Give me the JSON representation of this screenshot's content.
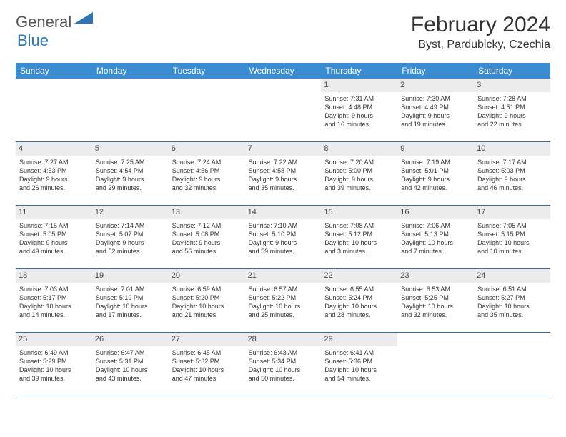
{
  "logo": {
    "part1": "General",
    "part2": "Blue"
  },
  "title": "February 2024",
  "location": "Byst, Pardubicky, Czechia",
  "colors": {
    "weekday_bg": "#3b8bd0",
    "weekday_text": "#ffffff",
    "daynum_bg": "#ececec",
    "border": "#2f6fa8",
    "logo_gray": "#555555",
    "logo_blue": "#2f75b5"
  },
  "weekdays": [
    "Sunday",
    "Monday",
    "Tuesday",
    "Wednesday",
    "Thursday",
    "Friday",
    "Saturday"
  ],
  "weeks": [
    [
      null,
      null,
      null,
      null,
      {
        "n": "1",
        "sr": "Sunrise: 7:31 AM",
        "ss": "Sunset: 4:48 PM",
        "dl1": "Daylight: 9 hours",
        "dl2": "and 16 minutes."
      },
      {
        "n": "2",
        "sr": "Sunrise: 7:30 AM",
        "ss": "Sunset: 4:49 PM",
        "dl1": "Daylight: 9 hours",
        "dl2": "and 19 minutes."
      },
      {
        "n": "3",
        "sr": "Sunrise: 7:28 AM",
        "ss": "Sunset: 4:51 PM",
        "dl1": "Daylight: 9 hours",
        "dl2": "and 22 minutes."
      }
    ],
    [
      {
        "n": "4",
        "sr": "Sunrise: 7:27 AM",
        "ss": "Sunset: 4:53 PM",
        "dl1": "Daylight: 9 hours",
        "dl2": "and 26 minutes."
      },
      {
        "n": "5",
        "sr": "Sunrise: 7:25 AM",
        "ss": "Sunset: 4:54 PM",
        "dl1": "Daylight: 9 hours",
        "dl2": "and 29 minutes."
      },
      {
        "n": "6",
        "sr": "Sunrise: 7:24 AM",
        "ss": "Sunset: 4:56 PM",
        "dl1": "Daylight: 9 hours",
        "dl2": "and 32 minutes."
      },
      {
        "n": "7",
        "sr": "Sunrise: 7:22 AM",
        "ss": "Sunset: 4:58 PM",
        "dl1": "Daylight: 9 hours",
        "dl2": "and 35 minutes."
      },
      {
        "n": "8",
        "sr": "Sunrise: 7:20 AM",
        "ss": "Sunset: 5:00 PM",
        "dl1": "Daylight: 9 hours",
        "dl2": "and 39 minutes."
      },
      {
        "n": "9",
        "sr": "Sunrise: 7:19 AM",
        "ss": "Sunset: 5:01 PM",
        "dl1": "Daylight: 9 hours",
        "dl2": "and 42 minutes."
      },
      {
        "n": "10",
        "sr": "Sunrise: 7:17 AM",
        "ss": "Sunset: 5:03 PM",
        "dl1": "Daylight: 9 hours",
        "dl2": "and 46 minutes."
      }
    ],
    [
      {
        "n": "11",
        "sr": "Sunrise: 7:15 AM",
        "ss": "Sunset: 5:05 PM",
        "dl1": "Daylight: 9 hours",
        "dl2": "and 49 minutes."
      },
      {
        "n": "12",
        "sr": "Sunrise: 7:14 AM",
        "ss": "Sunset: 5:07 PM",
        "dl1": "Daylight: 9 hours",
        "dl2": "and 52 minutes."
      },
      {
        "n": "13",
        "sr": "Sunrise: 7:12 AM",
        "ss": "Sunset: 5:08 PM",
        "dl1": "Daylight: 9 hours",
        "dl2": "and 56 minutes."
      },
      {
        "n": "14",
        "sr": "Sunrise: 7:10 AM",
        "ss": "Sunset: 5:10 PM",
        "dl1": "Daylight: 9 hours",
        "dl2": "and 59 minutes."
      },
      {
        "n": "15",
        "sr": "Sunrise: 7:08 AM",
        "ss": "Sunset: 5:12 PM",
        "dl1": "Daylight: 10 hours",
        "dl2": "and 3 minutes."
      },
      {
        "n": "16",
        "sr": "Sunrise: 7:06 AM",
        "ss": "Sunset: 5:13 PM",
        "dl1": "Daylight: 10 hours",
        "dl2": "and 7 minutes."
      },
      {
        "n": "17",
        "sr": "Sunrise: 7:05 AM",
        "ss": "Sunset: 5:15 PM",
        "dl1": "Daylight: 10 hours",
        "dl2": "and 10 minutes."
      }
    ],
    [
      {
        "n": "18",
        "sr": "Sunrise: 7:03 AM",
        "ss": "Sunset: 5:17 PM",
        "dl1": "Daylight: 10 hours",
        "dl2": "and 14 minutes."
      },
      {
        "n": "19",
        "sr": "Sunrise: 7:01 AM",
        "ss": "Sunset: 5:19 PM",
        "dl1": "Daylight: 10 hours",
        "dl2": "and 17 minutes."
      },
      {
        "n": "20",
        "sr": "Sunrise: 6:59 AM",
        "ss": "Sunset: 5:20 PM",
        "dl1": "Daylight: 10 hours",
        "dl2": "and 21 minutes."
      },
      {
        "n": "21",
        "sr": "Sunrise: 6:57 AM",
        "ss": "Sunset: 5:22 PM",
        "dl1": "Daylight: 10 hours",
        "dl2": "and 25 minutes."
      },
      {
        "n": "22",
        "sr": "Sunrise: 6:55 AM",
        "ss": "Sunset: 5:24 PM",
        "dl1": "Daylight: 10 hours",
        "dl2": "and 28 minutes."
      },
      {
        "n": "23",
        "sr": "Sunrise: 6:53 AM",
        "ss": "Sunset: 5:25 PM",
        "dl1": "Daylight: 10 hours",
        "dl2": "and 32 minutes."
      },
      {
        "n": "24",
        "sr": "Sunrise: 6:51 AM",
        "ss": "Sunset: 5:27 PM",
        "dl1": "Daylight: 10 hours",
        "dl2": "and 35 minutes."
      }
    ],
    [
      {
        "n": "25",
        "sr": "Sunrise: 6:49 AM",
        "ss": "Sunset: 5:29 PM",
        "dl1": "Daylight: 10 hours",
        "dl2": "and 39 minutes."
      },
      {
        "n": "26",
        "sr": "Sunrise: 6:47 AM",
        "ss": "Sunset: 5:31 PM",
        "dl1": "Daylight: 10 hours",
        "dl2": "and 43 minutes."
      },
      {
        "n": "27",
        "sr": "Sunrise: 6:45 AM",
        "ss": "Sunset: 5:32 PM",
        "dl1": "Daylight: 10 hours",
        "dl2": "and 47 minutes."
      },
      {
        "n": "28",
        "sr": "Sunrise: 6:43 AM",
        "ss": "Sunset: 5:34 PM",
        "dl1": "Daylight: 10 hours",
        "dl2": "and 50 minutes."
      },
      {
        "n": "29",
        "sr": "Sunrise: 6:41 AM",
        "ss": "Sunset: 5:36 PM",
        "dl1": "Daylight: 10 hours",
        "dl2": "and 54 minutes."
      },
      null,
      null
    ]
  ]
}
